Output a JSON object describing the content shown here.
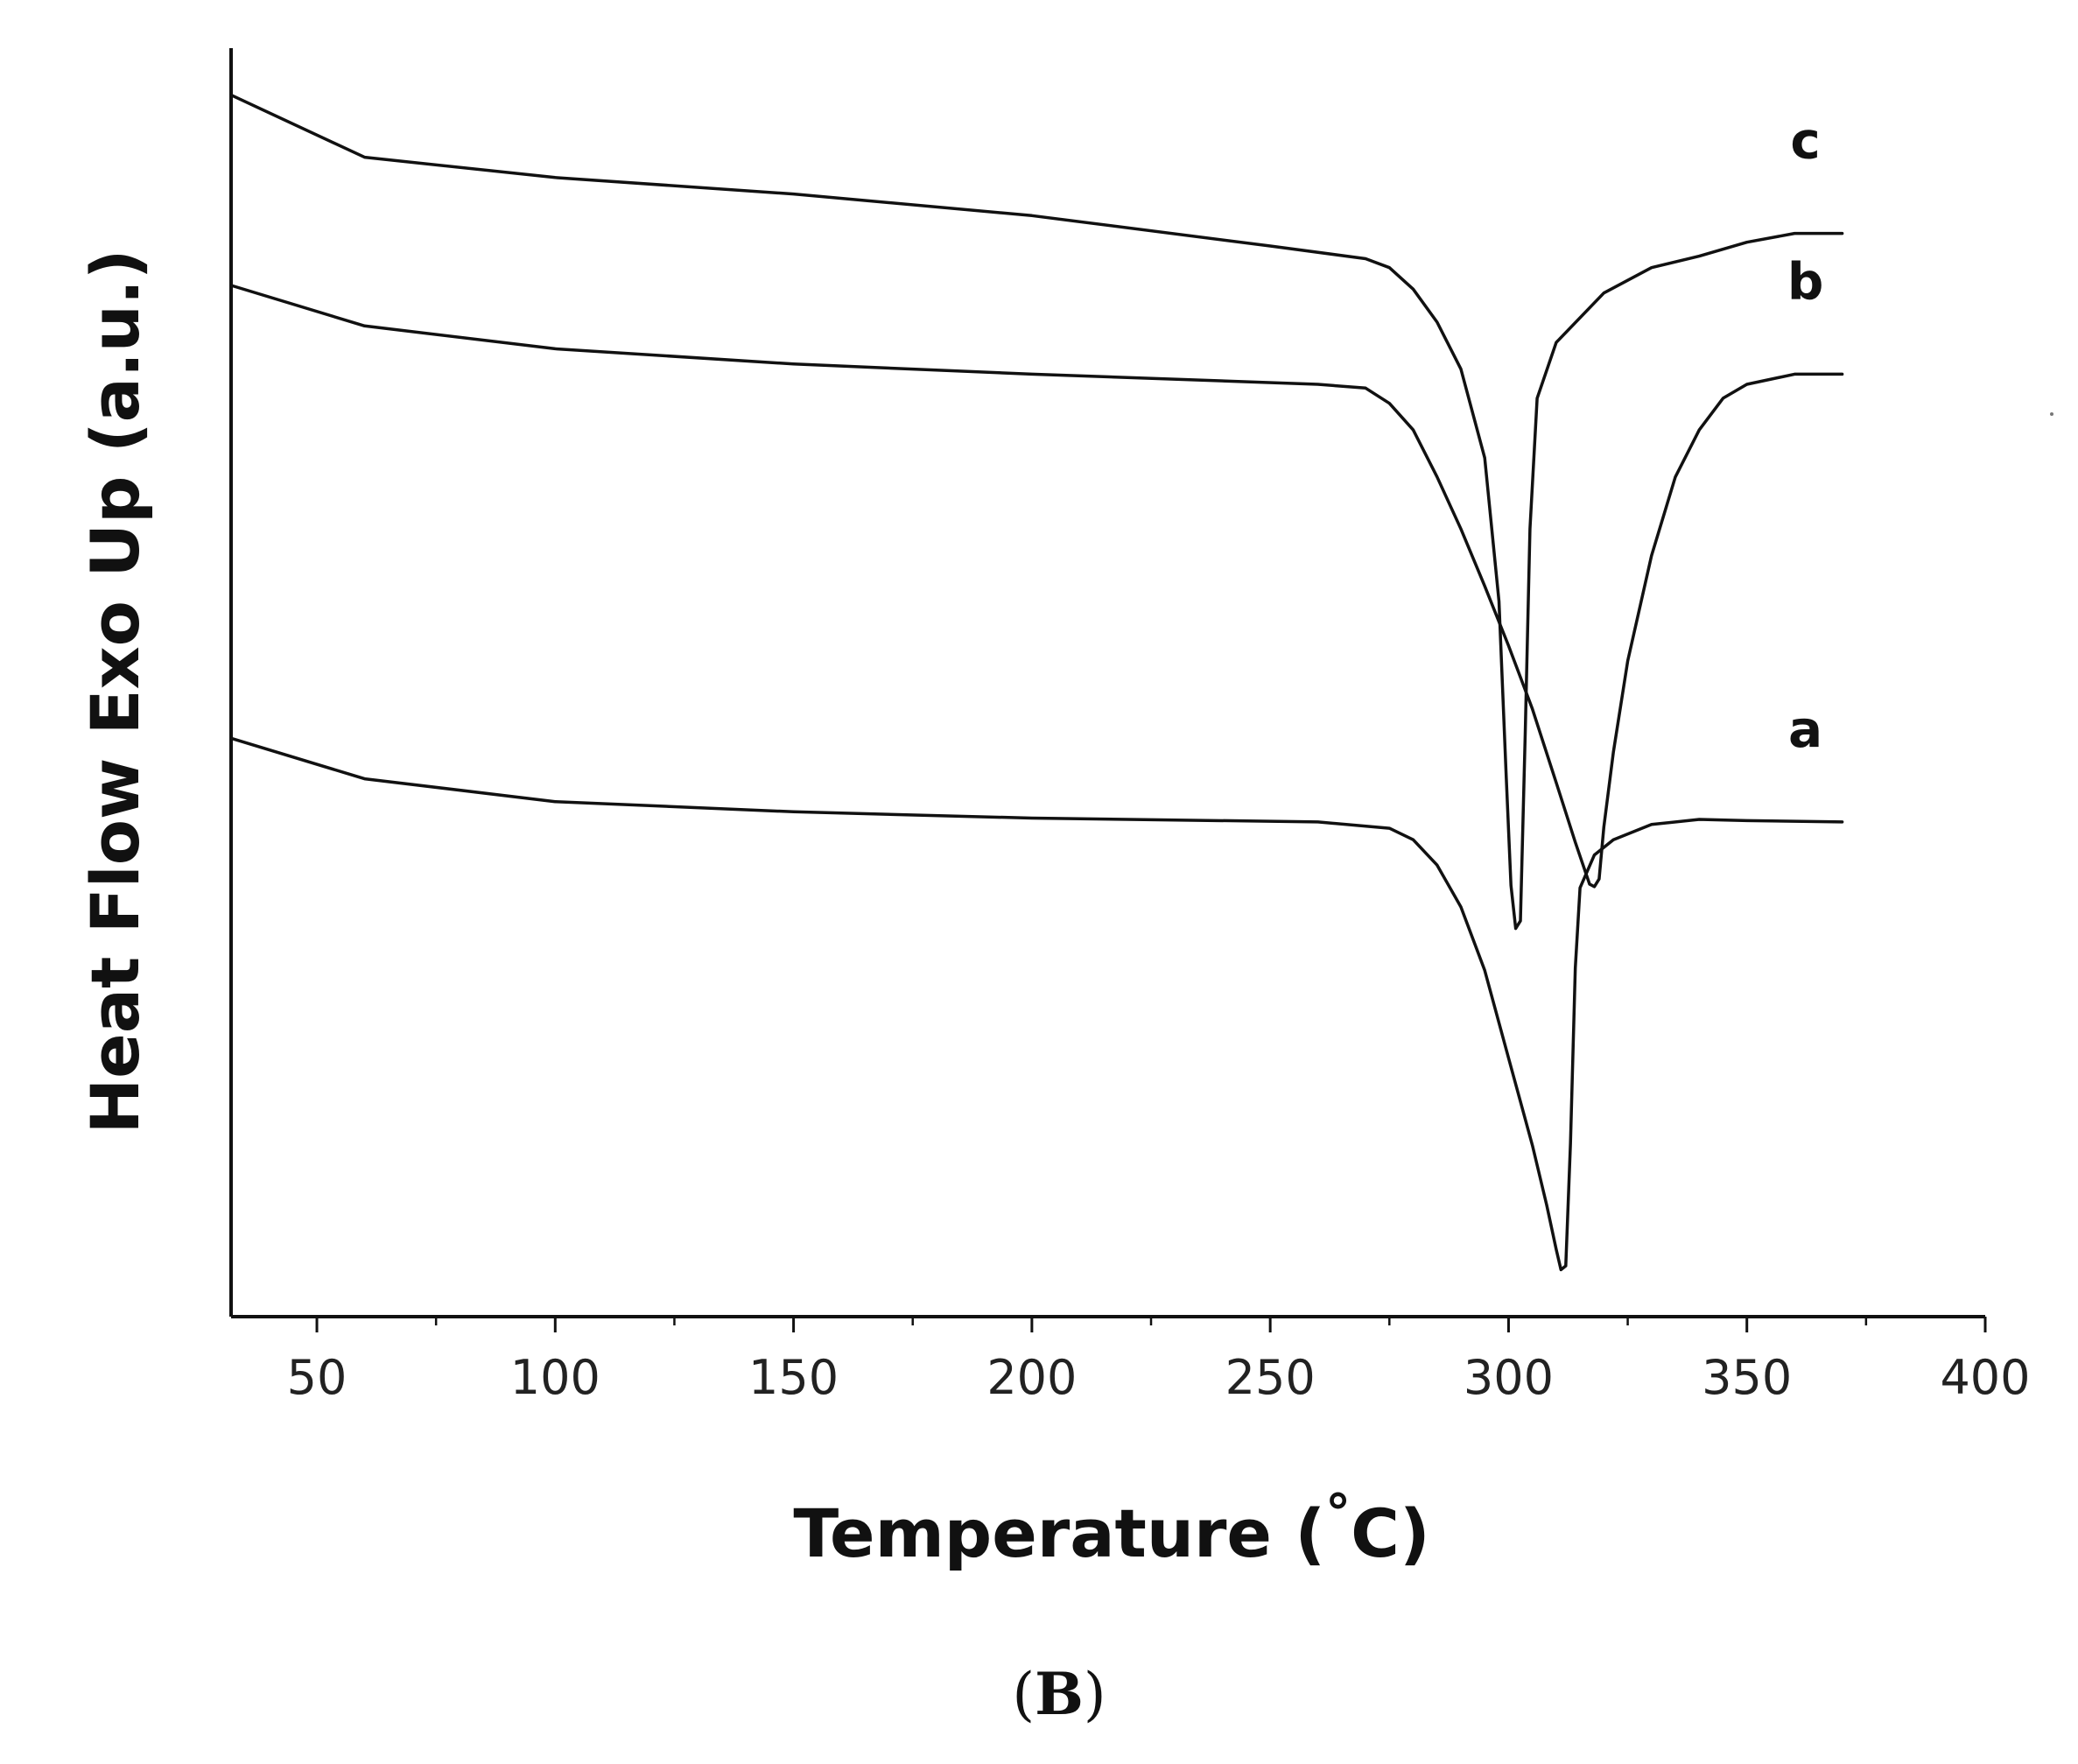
{
  "figure": {
    "panel_label": {
      "open": "(",
      "letter": "B",
      "close": ")"
    }
  },
  "chart_data": {
    "type": "line",
    "title": "",
    "xlabel": "Temperature (°C)",
    "xlabel_parts": {
      "main": "Temperature (",
      "degree": "°",
      "unit": "C",
      "close": ")"
    },
    "ylabel": "Heat Flow Exo Up (a.u.)",
    "xlim": [
      32,
      400
    ],
    "ylim": [
      0,
      100
    ],
    "x_ticks": [
      50,
      100,
      150,
      200,
      250,
      300,
      350,
      400
    ],
    "x_minor_ticks": [
      75,
      125,
      175,
      225,
      275,
      325,
      375
    ],
    "y_ticks_shown": false,
    "grid": false,
    "legend": "none",
    "line_color": "#111111",
    "series": [
      {
        "name": "a",
        "points": [
          [
            32,
            45.6
          ],
          [
            60,
            42.4
          ],
          [
            100,
            40.6
          ],
          [
            150,
            39.8
          ],
          [
            200,
            39.3
          ],
          [
            260,
            39.0
          ],
          [
            275,
            38.5
          ],
          [
            280,
            37.6
          ],
          [
            285,
            35.6
          ],
          [
            290,
            32.3
          ],
          [
            295,
            27.3
          ],
          [
            300,
            20.4
          ],
          [
            305,
            13.5
          ],
          [
            308,
            8.8
          ],
          [
            310,
            5.3
          ],
          [
            311,
            3.7
          ],
          [
            312,
            4.0
          ],
          [
            313,
            13.7
          ],
          [
            314,
            27.5
          ],
          [
            315,
            33.8
          ],
          [
            318,
            36.4
          ],
          [
            322,
            37.6
          ],
          [
            330,
            38.8
          ],
          [
            340,
            39.2
          ],
          [
            350,
            39.1
          ],
          [
            370,
            39.0
          ]
        ]
      },
      {
        "name": "b",
        "points": [
          [
            32,
            81.3
          ],
          [
            60,
            78.1
          ],
          [
            100,
            76.3
          ],
          [
            150,
            75.1
          ],
          [
            200,
            74.3
          ],
          [
            260,
            73.5
          ],
          [
            270,
            73.2
          ],
          [
            275,
            72.0
          ],
          [
            280,
            69.9
          ],
          [
            285,
            66.2
          ],
          [
            290,
            62.1
          ],
          [
            295,
            57.6
          ],
          [
            300,
            52.9
          ],
          [
            305,
            47.9
          ],
          [
            310,
            42.1
          ],
          [
            314,
            37.4
          ],
          [
            317,
            34.1
          ],
          [
            318,
            33.9
          ],
          [
            319,
            34.5
          ],
          [
            320,
            38.6
          ],
          [
            322,
            44.5
          ],
          [
            325,
            51.7
          ],
          [
            330,
            60.0
          ],
          [
            335,
            66.2
          ],
          [
            340,
            69.9
          ],
          [
            345,
            72.4
          ],
          [
            350,
            73.5
          ],
          [
            360,
            74.3
          ],
          [
            370,
            74.3
          ]
        ]
      },
      {
        "name": "c",
        "points": [
          [
            32,
            96.3
          ],
          [
            60,
            91.4
          ],
          [
            100,
            89.8
          ],
          [
            150,
            88.5
          ],
          [
            200,
            86.8
          ],
          [
            250,
            84.4
          ],
          [
            270,
            83.4
          ],
          [
            275,
            82.7
          ],
          [
            280,
            81.0
          ],
          [
            285,
            78.4
          ],
          [
            290,
            74.7
          ],
          [
            295,
            67.7
          ],
          [
            298,
            56.4
          ],
          [
            299.5,
            42.7
          ],
          [
            300.5,
            34.0
          ],
          [
            301.5,
            30.6
          ],
          [
            302.5,
            31.2
          ],
          [
            303.5,
            46.0
          ],
          [
            304.5,
            62.1
          ],
          [
            306,
            72.4
          ],
          [
            310,
            76.8
          ],
          [
            320,
            80.7
          ],
          [
            330,
            82.7
          ],
          [
            340,
            83.6
          ],
          [
            350,
            84.7
          ],
          [
            360,
            85.4
          ],
          [
            370,
            85.4
          ]
        ]
      }
    ]
  }
}
